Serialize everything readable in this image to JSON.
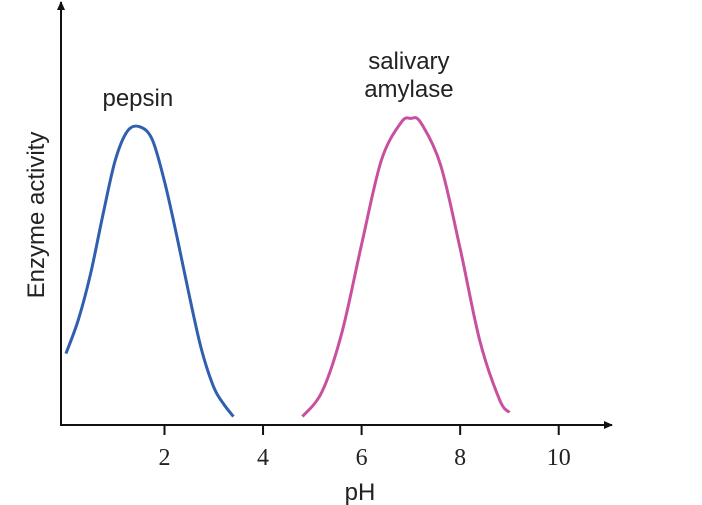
{
  "chart_data": {
    "type": "line",
    "x_label": "pH",
    "y_label": "Enzyme activity",
    "xlim": [
      -0.1,
      11
    ],
    "ylim": [
      0,
      1
    ],
    "xticks": [
      2,
      4,
      6,
      8,
      10
    ],
    "series": [
      {
        "name": "pepsin",
        "color": "#2f5fae",
        "x": [
          0,
          0.25,
          0.5,
          0.75,
          1,
          1.25,
          1.5,
          1.75,
          2,
          2.25,
          2.5,
          2.75,
          3,
          3.2,
          3.4
        ],
        "values": [
          0.17,
          0.25,
          0.36,
          0.5,
          0.63,
          0.7,
          0.71,
          0.68,
          0.58,
          0.45,
          0.31,
          0.18,
          0.09,
          0.05,
          0.02
        ]
      },
      {
        "name": "salivary amylase",
        "color": "#c8509e",
        "x": [
          4.8,
          5.2,
          5.6,
          6.0,
          6.4,
          6.8,
          7.0,
          7.2,
          7.6,
          8.0,
          8.4,
          8.8,
          9.0
        ],
        "values": [
          0.02,
          0.08,
          0.22,
          0.43,
          0.63,
          0.72,
          0.73,
          0.72,
          0.62,
          0.42,
          0.2,
          0.06,
          0.03
        ]
      }
    ]
  }
}
